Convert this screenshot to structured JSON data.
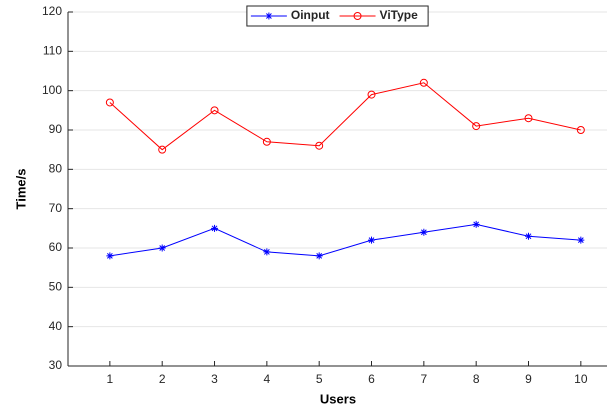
{
  "chart_data": {
    "type": "line",
    "x": [
      1,
      2,
      3,
      4,
      5,
      6,
      7,
      8,
      9,
      10
    ],
    "series": [
      {
        "name": "Oinput",
        "color": "#0000ff",
        "marker": "asterisk",
        "values": [
          58,
          60,
          65,
          59,
          58,
          62,
          64,
          66,
          63,
          62
        ]
      },
      {
        "name": "ViType",
        "color": "#ff0000",
        "marker": "circle",
        "values": [
          97,
          85,
          95,
          87,
          86,
          99,
          102,
          91,
          93,
          90
        ]
      }
    ],
    "xlabel": "Users",
    "ylabel": "Time/s",
    "xlim": [
      0.2,
      10.5
    ],
    "xticks": [
      1,
      2,
      3,
      4,
      5,
      6,
      7,
      8,
      9,
      10
    ],
    "ylim": [
      30,
      120
    ],
    "yticks": [
      30,
      40,
      50,
      60,
      70,
      80,
      90,
      100,
      110,
      120
    ],
    "grid": true,
    "legend": "north"
  }
}
